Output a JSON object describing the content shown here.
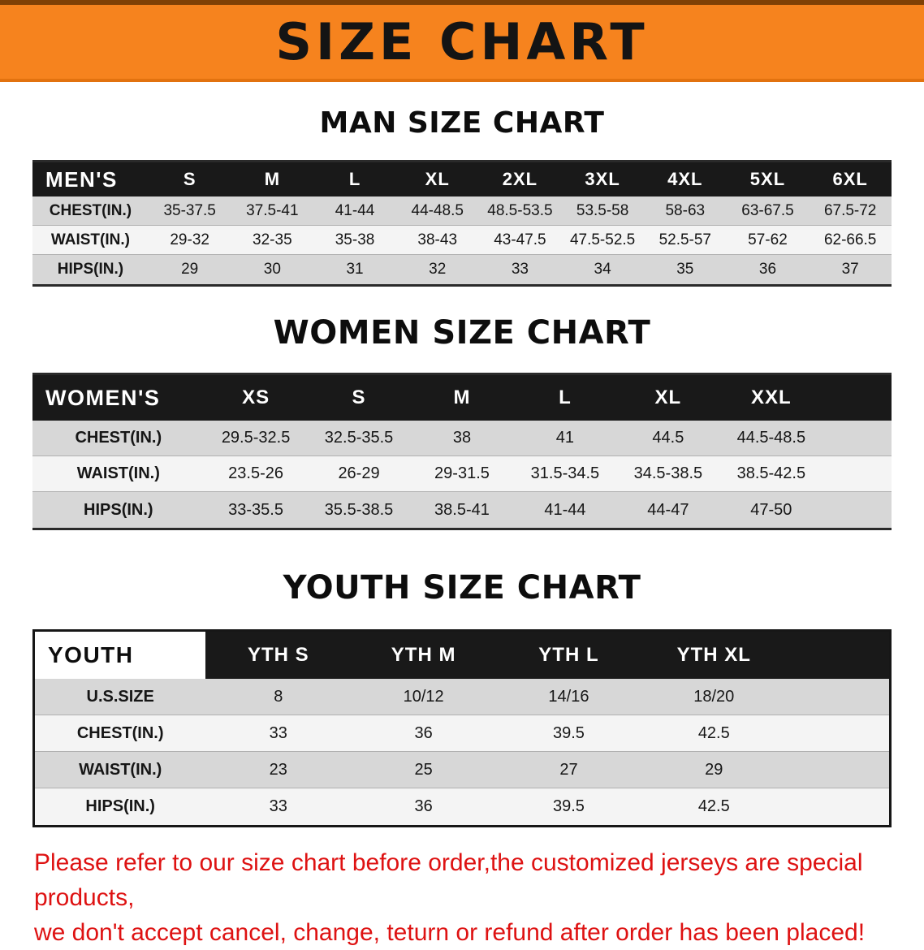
{
  "banner": {
    "title": "SIZE CHART"
  },
  "colors": {
    "banner_bg": "#f6831e",
    "table_header_bg": "#191919",
    "row_gray": "#d7d7d7",
    "row_light": "#f4f4f4",
    "disclaimer_red": "#de1212"
  },
  "sections": [
    {
      "heading": "MAN SIZE CHART",
      "table": {
        "header": [
          "MEN'S",
          "S",
          "M",
          "L",
          "XL",
          "2XL",
          "3XL",
          "4XL",
          "5XL",
          "6XL"
        ],
        "rows": [
          [
            "CHEST(IN.)",
            "35-37.5",
            "37.5-41",
            "41-44",
            "44-48.5",
            "48.5-53.5",
            "53.5-58",
            "58-63",
            "63-67.5",
            "67.5-72"
          ],
          [
            "WAIST(IN.)",
            "29-32",
            "32-35",
            "35-38",
            "38-43",
            "43-47.5",
            "47.5-52.5",
            "52.5-57",
            "57-62",
            "62-66.5"
          ],
          [
            "HIPS(IN.)",
            "29",
            "30",
            "31",
            "32",
            "33",
            "34",
            "35",
            "36",
            "37"
          ]
        ]
      }
    },
    {
      "heading": "WOMEN SIZE CHART",
      "table": {
        "header": [
          "WOMEN'S",
          "XS",
          "S",
          "M",
          "L",
          "XL",
          "XXL"
        ],
        "rows": [
          [
            "CHEST(IN.)",
            "29.5-32.5",
            "32.5-35.5",
            "38",
            "41",
            "44.5",
            "44.5-48.5"
          ],
          [
            "WAIST(IN.)",
            "23.5-26",
            "26-29",
            "29-31.5",
            "31.5-34.5",
            "34.5-38.5",
            "38.5-42.5"
          ],
          [
            "HIPS(IN.)",
            "33-35.5",
            "35.5-38.5",
            "38.5-41",
            "41-44",
            "44-47",
            "47-50"
          ]
        ]
      }
    },
    {
      "heading": "YOUTH SIZE CHART",
      "table": {
        "header": [
          "YOUTH",
          "YTH S",
          "YTH M",
          "YTH L",
          "YTH XL"
        ],
        "rows": [
          [
            "U.S.SIZE",
            "8",
            "10/12",
            "14/16",
            "18/20"
          ],
          [
            "CHEST(IN.)",
            "33",
            "36",
            "39.5",
            "42.5"
          ],
          [
            "WAIST(IN.)",
            "23",
            "25",
            "27",
            "29"
          ],
          [
            "HIPS(IN.)",
            "33",
            "36",
            "39.5",
            "42.5"
          ]
        ]
      }
    }
  ],
  "disclaimer": {
    "line1": "Please refer to our size chart before order,the customized jerseys are special products,",
    "line2": "we don't accept cancel, change, teturn or refund after order has been placed!"
  }
}
